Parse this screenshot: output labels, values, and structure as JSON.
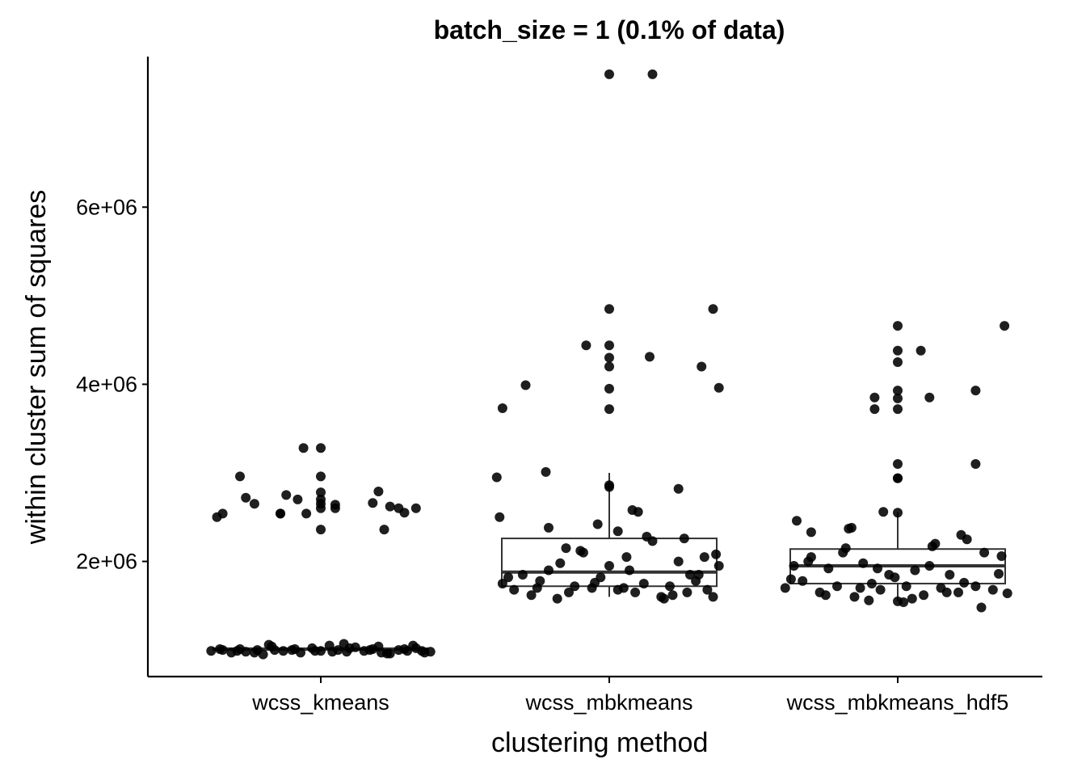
{
  "chart_data": {
    "type": "box",
    "title": "batch_size = 1 (0.1% of data)",
    "xlabel": "clustering method",
    "ylabel": "within cluster sum of squares",
    "categories": [
      "wcss_kmeans",
      "wcss_mbkmeans",
      "wcss_mbkmeans_hdf5"
    ],
    "ylim": [
      700000,
      7700000
    ],
    "yticks": [
      2000000,
      4000000,
      6000000
    ],
    "ytick_labels": [
      "2e+06",
      "4e+06",
      "6e+06"
    ],
    "grid": false,
    "boxes": [
      {
        "category": "wcss_kmeans",
        "whisker_low": 980000,
        "q1": 1000000,
        "median": 1010000,
        "q3": 1020000,
        "whisker_high": 1040000
      },
      {
        "category": "wcss_mbkmeans",
        "whisker_low": 1600000,
        "q1": 1720000,
        "median": 1880000,
        "q3": 2260000,
        "whisker_high": 3000000
      },
      {
        "category": "wcss_mbkmeans_hdf5",
        "whisker_low": 1550000,
        "q1": 1750000,
        "median": 1950000,
        "q3": 2140000,
        "whisker_high": 2560000
      }
    ],
    "points": [
      {
        "category": "wcss_kmeans",
        "x_offset": [
          -0.36,
          -0.34,
          -0.28,
          -0.26,
          -0.23,
          -0.14,
          -0.12,
          -0.08,
          -0.14,
          -0.05,
          -0.06,
          0.0,
          0.0,
          0.0,
          0.0,
          0.0,
          0.0,
          0.05,
          0.05,
          0.0,
          0.18,
          0.2,
          0.27,
          0.29,
          0.33,
          0.22,
          0.24
        ],
        "y": [
          2500000,
          2540000,
          2960000,
          2720000,
          2650000,
          2540000,
          2750000,
          2700000,
          2540000,
          2540000,
          3280000,
          3280000,
          2960000,
          2780000,
          2700000,
          2650000,
          2600000,
          2600000,
          2640000,
          2360000,
          2660000,
          2790000,
          2600000,
          2550000,
          2600000,
          2360000,
          2620000
        ]
      },
      {
        "category": "wcss_kmeans",
        "x_offset": [
          -0.38,
          -0.34,
          -0.31,
          -0.28,
          -0.26,
          -0.22,
          -0.2,
          -0.17,
          -0.13,
          -0.1,
          -0.07,
          -0.03,
          0.0,
          0.03,
          0.06,
          0.09,
          0.12,
          0.15,
          0.18,
          0.21,
          0.24,
          0.27,
          0.3,
          0.33,
          0.36,
          0.38,
          -0.35,
          -0.29,
          -0.23,
          -0.16,
          -0.09,
          -0.02,
          0.04,
          0.1,
          0.17,
          0.23,
          0.29,
          0.35,
          -0.18,
          0.08,
          0.2,
          0.32
        ],
        "y": [
          990000,
          1000000,
          970000,
          1010000,
          980000,
          1000000,
          950000,
          1040000,
          990000,
          1000000,
          970000,
          1020000,
          990000,
          1050000,
          1000000,
          980000,
          1030000,
          990000,
          1010000,
          970000,
          960000,
          1000000,
          990000,
          1020000,
          970000,
          980000,
          1010000,
          990000,
          970000,
          1000000,
          1010000,
          990000,
          980000,
          1020000,
          1000000,
          960000,
          1010000,
          990000,
          1060000,
          1070000,
          1040000,
          1050000
        ]
      },
      {
        "category": "wcss_mbkmeans",
        "x_offset": [
          0.0,
          0.15,
          0.0,
          -0.37,
          -0.39,
          -0.29,
          -0.22,
          -0.08,
          0.0,
          0.0,
          0.0,
          0.0,
          0.14,
          0.0,
          -0.38,
          -0.21,
          0.36,
          0.38,
          0.32,
          0.0,
          0.0,
          -0.04,
          0.08,
          0.1,
          0.03,
          0.24
        ],
        "y": [
          7500000,
          7500000,
          4850000,
          3730000,
          2950000,
          3990000,
          3010000,
          4440000,
          4440000,
          4300000,
          4200000,
          3950000,
          4310000,
          3720000,
          2500000,
          2380000,
          4850000,
          3960000,
          4200000,
          2860000,
          2840000,
          2420000,
          2580000,
          2560000,
          2340000,
          2820000
        ]
      },
      {
        "category": "wcss_mbkmeans",
        "x_offset": [
          -0.37,
          -0.33,
          -0.3,
          -0.27,
          -0.24,
          -0.21,
          -0.18,
          -0.15,
          -0.12,
          -0.09,
          -0.06,
          -0.03,
          0.0,
          0.03,
          0.06,
          0.09,
          0.12,
          0.15,
          0.18,
          0.21,
          0.24,
          0.27,
          0.3,
          0.33,
          0.36,
          0.38,
          -0.35,
          -0.25,
          -0.17,
          -0.1,
          0.05,
          0.13,
          0.22,
          0.31,
          0.34,
          0.26,
          0.19,
          -0.05,
          -0.14,
          0.07,
          0.28,
          0.37
        ],
        "y": [
          1750000,
          1680000,
          1850000,
          1620000,
          1780000,
          1900000,
          1580000,
          2150000,
          1720000,
          2100000,
          1700000,
          1820000,
          1950000,
          1680000,
          2050000,
          1650000,
          1750000,
          2230000,
          1600000,
          1720000,
          2000000,
          1650000,
          1780000,
          2050000,
          1600000,
          1950000,
          1820000,
          1700000,
          1980000,
          2120000,
          1700000,
          2280000,
          1620000,
          1850000,
          1680000,
          2260000,
          1580000,
          1760000,
          1650000,
          1900000,
          1850000,
          2080000
        ]
      },
      {
        "category": "wcss_mbkmeans_hdf5",
        "x_offset": [
          0.0,
          0.37,
          0.0,
          0.0,
          0.08,
          -0.08,
          0.11,
          0.0,
          0.0,
          0.0,
          -0.08,
          0.0,
          0.0,
          0.0,
          0.27,
          -0.16,
          0.27,
          -0.05,
          0.0,
          -0.17,
          -0.35,
          -0.3
        ],
        "y": [
          4660000,
          4660000,
          4380000,
          4250000,
          4380000,
          3850000,
          3850000,
          3930000,
          3840000,
          3720000,
          3720000,
          3100000,
          2940000,
          2940000,
          3930000,
          2380000,
          3100000,
          2560000,
          2550000,
          2370000,
          2460000,
          2330000
        ]
      },
      {
        "category": "wcss_mbkmeans_hdf5",
        "x_offset": [
          -0.39,
          -0.36,
          -0.33,
          -0.3,
          -0.27,
          -0.24,
          -0.21,
          -0.18,
          -0.15,
          -0.12,
          -0.09,
          -0.06,
          -0.03,
          0.0,
          0.03,
          0.06,
          0.09,
          0.12,
          0.15,
          0.18,
          0.21,
          0.24,
          0.27,
          0.3,
          0.33,
          0.36,
          0.38,
          -0.37,
          -0.31,
          -0.25,
          -0.19,
          -0.13,
          -0.07,
          -0.01,
          0.05,
          0.11,
          0.17,
          0.23,
          0.29,
          0.35,
          0.22,
          0.13,
          0.02,
          -0.1
        ],
        "y": [
          1700000,
          1950000,
          1780000,
          2050000,
          1650000,
          1920000,
          1720000,
          2150000,
          1600000,
          1980000,
          1750000,
          1680000,
          1850000,
          1550000,
          1720000,
          1900000,
          1620000,
          2170000,
          1700000,
          1850000,
          1650000,
          2250000,
          1720000,
          2100000,
          1680000,
          2060000,
          1640000,
          1800000,
          2000000,
          1620000,
          2100000,
          1700000,
          1920000,
          1820000,
          1580000,
          1950000,
          1650000,
          1760000,
          1480000,
          1860000,
          2300000,
          2200000,
          1540000,
          1560000
        ]
      }
    ]
  }
}
